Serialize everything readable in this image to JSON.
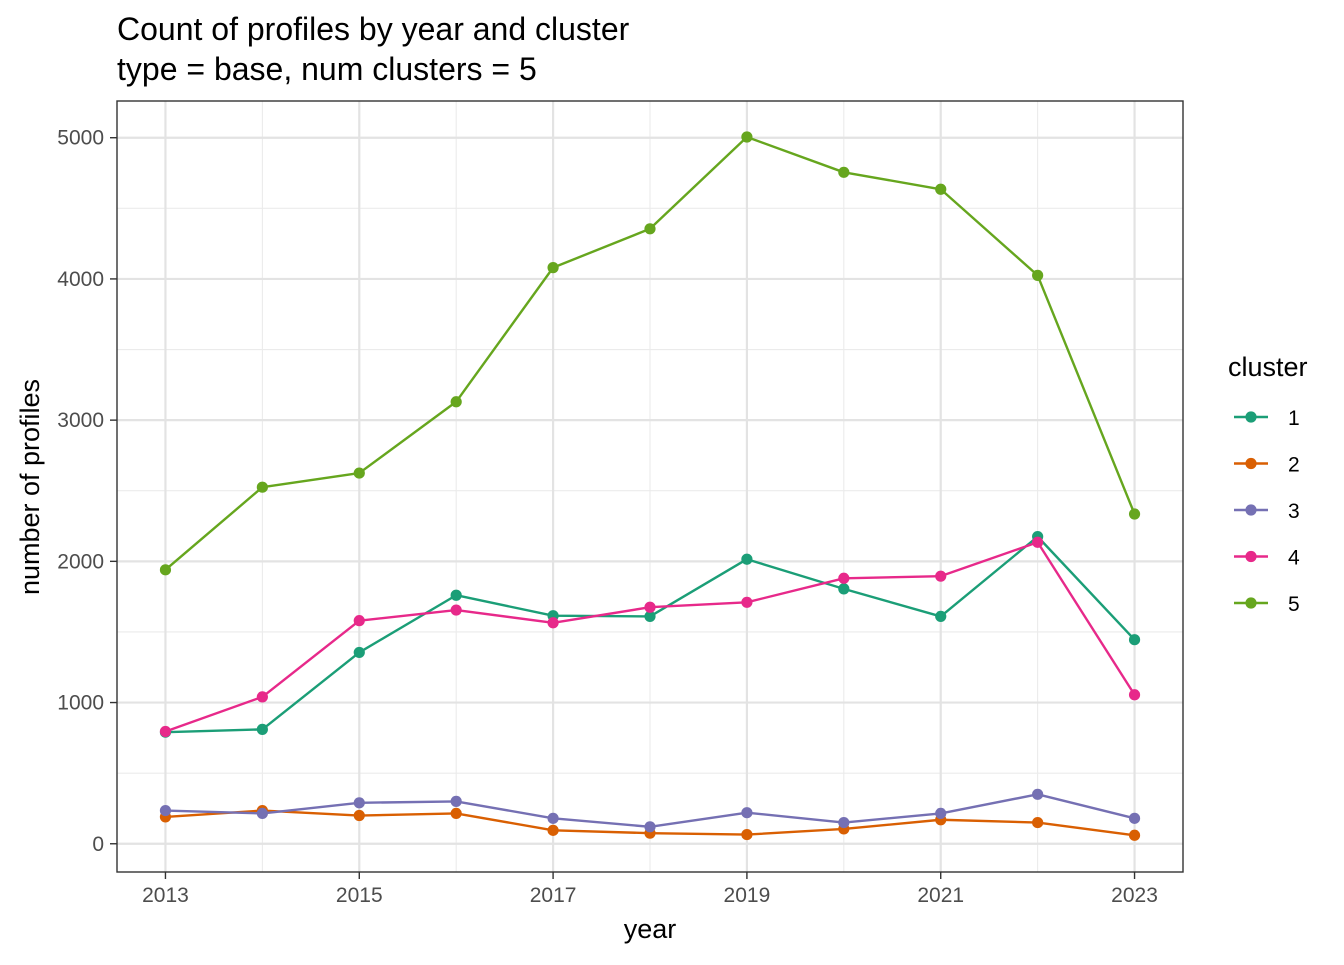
{
  "chart_data": {
    "type": "line",
    "title": "Count of profiles by year and cluster",
    "subtitle": "type = base, num clusters = 5",
    "xlabel": "year",
    "ylabel": "number of profiles",
    "xlim": [
      2012.5,
      2023.5
    ],
    "ylim": [
      -200,
      5260
    ],
    "x_ticks": [
      2013,
      2015,
      2017,
      2019,
      2021,
      2023
    ],
    "y_ticks": [
      0,
      1000,
      2000,
      3000,
      4000,
      5000
    ],
    "grid": true,
    "legend": {
      "title": "cluster",
      "position": "right"
    },
    "x": [
      2013,
      2014,
      2015,
      2016,
      2017,
      2018,
      2019,
      2020,
      2021,
      2022,
      2023
    ],
    "series": [
      {
        "name": "1",
        "color": "#1B9E77",
        "values": [
          790,
          810,
          1355,
          1760,
          1615,
          1610,
          2015,
          1805,
          1610,
          2175,
          1445
        ]
      },
      {
        "name": "2",
        "color": "#D95F02",
        "values": [
          190,
          235,
          200,
          215,
          95,
          75,
          65,
          105,
          170,
          150,
          60
        ]
      },
      {
        "name": "3",
        "color": "#7570B3",
        "values": [
          235,
          215,
          290,
          300,
          180,
          120,
          220,
          150,
          215,
          350,
          180
        ]
      },
      {
        "name": "4",
        "color": "#E7298A",
        "values": [
          795,
          1040,
          1580,
          1655,
          1565,
          1675,
          1710,
          1880,
          1895,
          2135,
          1055
        ]
      },
      {
        "name": "5",
        "color": "#66A61E",
        "values": [
          1940,
          2525,
          2625,
          3130,
          4080,
          4355,
          5005,
          4755,
          4635,
          4025,
          2335
        ]
      }
    ]
  }
}
